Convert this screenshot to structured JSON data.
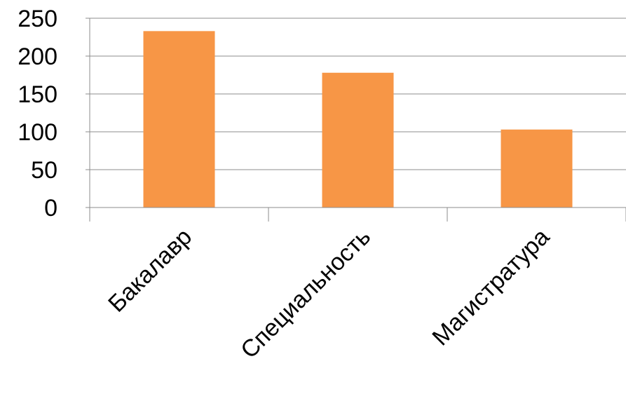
{
  "chart_data": {
    "type": "bar",
    "categories": [
      "Бакалавр",
      "Специальность",
      "Магистратура"
    ],
    "series": [
      {
        "values": [
          233,
          178,
          103
        ],
        "color": "#f79646"
      }
    ],
    "yticks": [
      "0",
      "50",
      "100",
      "150",
      "200",
      "250"
    ],
    "ylim": [
      0,
      250
    ],
    "grid": true,
    "legend": "none",
    "title": "",
    "xlabel": "",
    "ylabel": ""
  }
}
